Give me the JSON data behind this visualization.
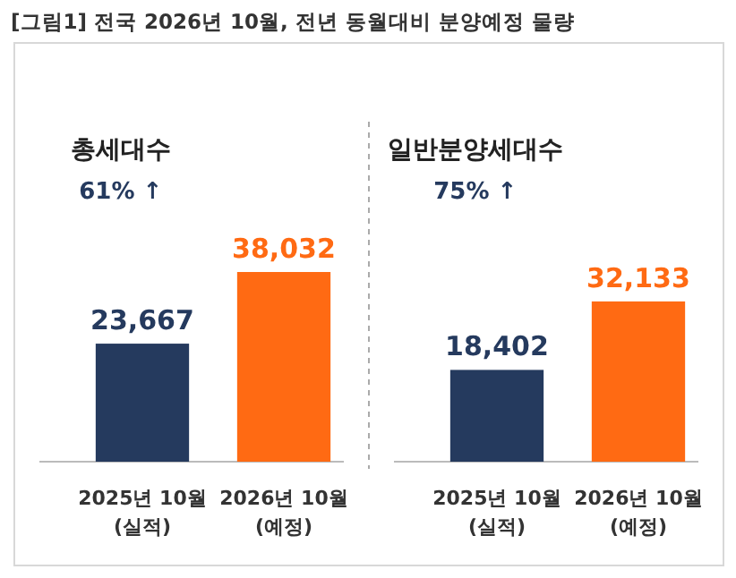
{
  "chart_data": [
    {
      "type": "other",
      "title": "[그림1] 전국 2026년 10월, 전년 동월대비 분양예정 물량"
    },
    {
      "type": "bar",
      "title": "총세대수",
      "annotations": [
        "61% ↑"
      ],
      "categories": [
        "2025년 10월\n(실적)",
        "2026년 10월\n(예정)"
      ],
      "values": [
        23667,
        38032
      ],
      "value_labels": [
        "23,667",
        "38,032"
      ],
      "colors": [
        "#253a5e",
        "#ff6a13"
      ]
    },
    {
      "type": "bar",
      "title": "일반분양세대수",
      "annotations": [
        "75% ↑"
      ],
      "categories": [
        "2025년 10월\n(실적)",
        "2026년 10월\n(예정)"
      ],
      "values": [
        18402,
        32133
      ],
      "value_labels": [
        "18,402",
        "32,133"
      ],
      "colors": [
        "#253a5e",
        "#ff6a13"
      ]
    }
  ]
}
